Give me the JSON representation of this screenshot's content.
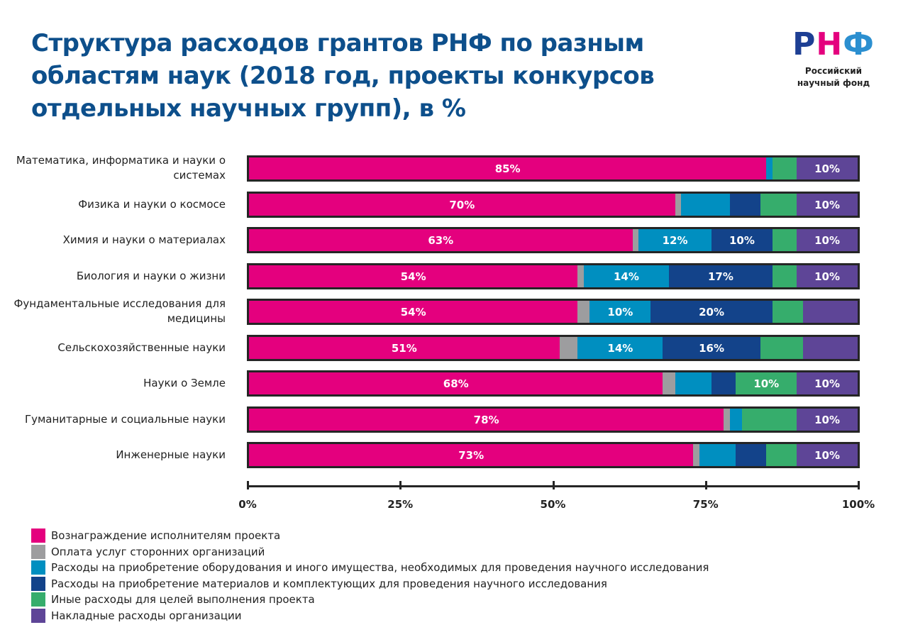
{
  "header": {
    "title": "Структура расходов грантов РНФ по разным областям наук (2018 год, проекты конкурсов отдельных научных групп), в %"
  },
  "logo": {
    "mark": [
      "Р",
      "Н",
      "Ф"
    ],
    "subtitle_line1": "Российский",
    "subtitle_line2": "научный фонд"
  },
  "chart_data": {
    "type": "bar",
    "orientation": "horizontal",
    "stacked": true,
    "title": "Структура расходов грантов РНФ по разным областям наук (2018 год, проекты конкурсов отдельных научных групп), в %",
    "xlim": [
      0,
      100
    ],
    "x_ticks": [
      "0%",
      "25%",
      "50%",
      "75%",
      "100%"
    ],
    "grid": false,
    "legend_position": "bottom-left",
    "categories": [
      "Математика, информатика и науки о системах",
      "Физика и науки о космосе",
      "Химия и науки о материалах",
      "Биология и науки о жизни",
      "Фундаментальные исследования для медицины",
      "Сельскохозяйственные науки",
      "Науки о Земле",
      "Гуманитарные и социальные науки",
      "Инженерные науки"
    ],
    "series": [
      {
        "name": "Вознаграждение исполнителям проекта",
        "color": "#e4007e",
        "values": [
          85,
          70,
          63,
          54,
          54,
          51,
          68,
          78,
          73
        ],
        "labels": [
          "85%",
          "70%",
          "63%",
          "54%",
          "54%",
          "51%",
          "68%",
          "78%",
          "73%"
        ]
      },
      {
        "name": "Оплата услуг сторонних организаций",
        "color": "#9d9d9f",
        "values": [
          0,
          1,
          1,
          1,
          2,
          3,
          2,
          1,
          1
        ],
        "labels": [
          "",
          "",
          "",
          "",
          "",
          "",
          "",
          "",
          ""
        ]
      },
      {
        "name": "Расходы на приобретение оборудования и иного имущества, необходимых для проведения научного исследования",
        "color": "#008fc0",
        "values": [
          1,
          8,
          12,
          14,
          10,
          14,
          6,
          2,
          6
        ],
        "labels": [
          "",
          "",
          "12%",
          "14%",
          "10%",
          "14%",
          "",
          "",
          ""
        ]
      },
      {
        "name": "Расходы на приобретение материалов и комплектующих для проведения научного исследования",
        "color": "#13438a",
        "values": [
          0,
          5,
          10,
          17,
          20,
          16,
          4,
          0,
          5
        ],
        "labels": [
          "",
          "",
          "10%",
          "17%",
          "20%",
          "16%",
          "",
          "",
          ""
        ]
      },
      {
        "name": "Иные расходы для целей выполнения проекта",
        "color": "#36ad6c",
        "values": [
          4,
          6,
          4,
          4,
          5,
          7,
          10,
          9,
          5
        ],
        "labels": [
          "",
          "",
          "",
          "",
          "",
          "",
          "10%",
          "",
          ""
        ]
      },
      {
        "name": "Накладные расходы организации",
        "color": "#5e4597",
        "values": [
          10,
          10,
          10,
          10,
          9,
          9,
          10,
          10,
          10
        ],
        "labels": [
          "10%",
          "10%",
          "10%",
          "10%",
          "",
          "",
          "10%",
          "10%",
          "10%"
        ]
      }
    ]
  }
}
